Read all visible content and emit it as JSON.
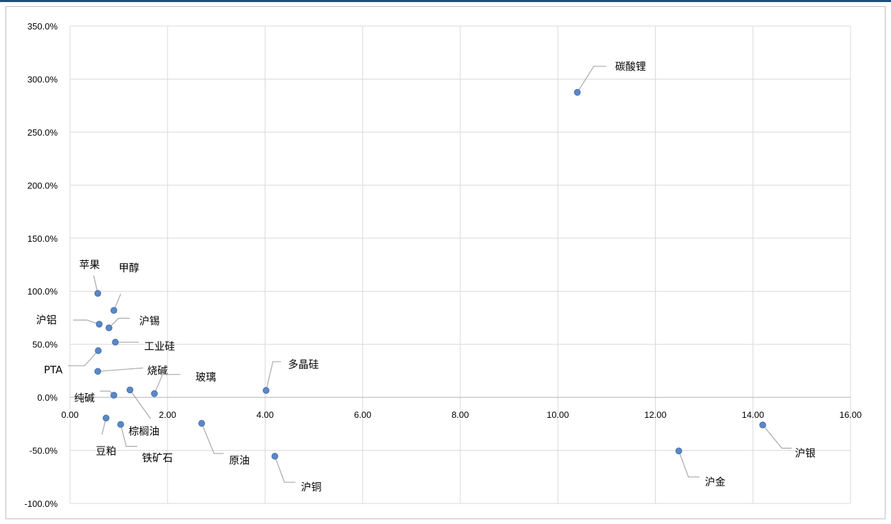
{
  "colors": {
    "point": "#5b87c5",
    "point_stroke": "#3f6aa6",
    "grid": "#d9d9d9",
    "axis": "#bfbfbf",
    "leader": "#a6a6a6",
    "frame": "#bfbfbf",
    "top_border": "#1f4e79"
  },
  "chart_data": {
    "type": "scatter",
    "title": "",
    "xlabel": "",
    "ylabel": "",
    "xlim": [
      0,
      16
    ],
    "ylim": [
      -100,
      350
    ],
    "x_ticks": [
      0,
      2,
      4,
      6,
      8,
      10,
      12,
      14,
      16
    ],
    "y_ticks": [
      -100,
      -50,
      0,
      50,
      100,
      150,
      200,
      250,
      300,
      350
    ],
    "x_tick_labels": [
      "0.00",
      "2.00",
      "4.00",
      "6.00",
      "8.00",
      "10.00",
      "12.00",
      "14.00",
      "16.00"
    ],
    "y_tick_labels": [
      "-100.0%",
      "-50.0%",
      "0.0%",
      "50.0%",
      "100.0%",
      "150.0%",
      "200.0%",
      "250.0%",
      "300.0%",
      "350.0%"
    ],
    "grid": true,
    "legend": "none",
    "points": [
      {
        "label": "碳酸锂",
        "x": 10.4,
        "y": 287.5
      },
      {
        "label": "苹果",
        "x": 0.57,
        "y": 98.0
      },
      {
        "label": "甲醇",
        "x": 0.9,
        "y": 82.0
      },
      {
        "label": "沪铝",
        "x": 0.6,
        "y": 69.0
      },
      {
        "label": "沪锡",
        "x": 0.8,
        "y": 65.5
      },
      {
        "label": "工业硅",
        "x": 0.93,
        "y": 52.0
      },
      {
        "label": "PTA",
        "x": 0.58,
        "y": 44.0
      },
      {
        "label": "烧碱",
        "x": 0.57,
        "y": 24.5
      },
      {
        "label": "玻璃",
        "x": 1.73,
        "y": 3.5
      },
      {
        "label": "多晶硅",
        "x": 4.02,
        "y": 6.5
      },
      {
        "label": "纯碱",
        "x": 0.9,
        "y": 2.0
      },
      {
        "label": "棕榈油",
        "x": 1.23,
        "y": 7.0
      },
      {
        "label": "豆粕",
        "x": 0.74,
        "y": -19.5
      },
      {
        "label": "铁矿石",
        "x": 1.04,
        "y": -25.5
      },
      {
        "label": "原油",
        "x": 2.7,
        "y": -24.5
      },
      {
        "label": "沪铜",
        "x": 4.2,
        "y": -55.5
      },
      {
        "label": "沪金",
        "x": 12.48,
        "y": -50.5
      },
      {
        "label": "沪银",
        "x": 14.2,
        "y": -26.0
      }
    ]
  }
}
